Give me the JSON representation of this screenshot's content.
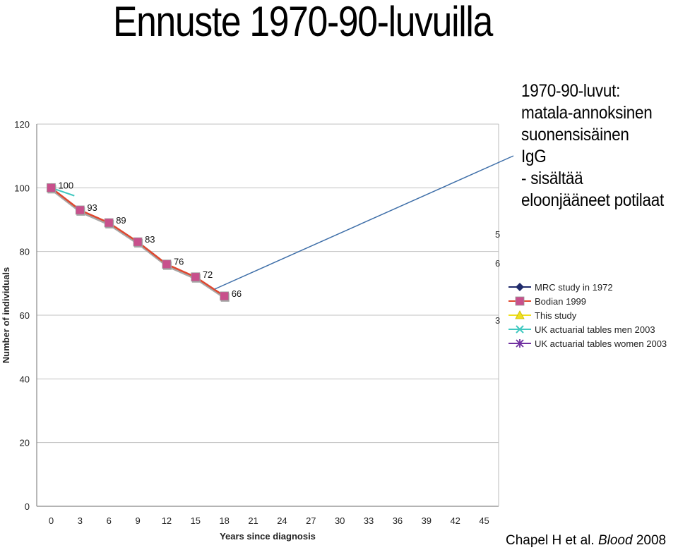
{
  "slide": {
    "title": "Ennuste 1970-90-luvuilla",
    "note_lines": [
      "1970-90-luvut:",
      "matala-annoksinen",
      "suonensisäinen",
      "IgG",
      "- sisältää",
      "eloonjääneet potilaat"
    ],
    "citation": {
      "authors": "Chapel H et al. ",
      "journal": "Blood",
      "year": " 2008"
    }
  },
  "colors": {
    "mrc": "#1f2a6b",
    "bodian": "#c8508c",
    "bodian_line": "#e0472f",
    "this_study": "#f0e020",
    "uk_men": "#40c8c0",
    "uk_women": "#7030a0",
    "annotation_line": "#3d6ea8",
    "gridline": "#c0c0c0"
  },
  "chart_data": {
    "type": "line",
    "xlabel": "Years since diagnosis",
    "ylabel": "Number of individuals",
    "ylim": [
      0,
      120
    ],
    "yticks": [
      0,
      20,
      40,
      60,
      80,
      100,
      120
    ],
    "xticks": [
      0,
      3,
      6,
      9,
      12,
      15,
      18,
      21,
      24,
      27,
      30,
      33,
      36,
      39,
      42,
      45
    ],
    "grid": true,
    "legend_position": "right",
    "series": [
      {
        "name": "MRC study in 1972",
        "marker": "diamond",
        "x": [
          0
        ],
        "values": [
          100
        ]
      },
      {
        "name": "Bodian 1999",
        "marker": "square",
        "x": [
          0,
          3,
          6,
          9,
          12,
          15,
          18
        ],
        "values": [
          100,
          93,
          89,
          83,
          76,
          72,
          66
        ]
      },
      {
        "name": "This study",
        "marker": "triangle",
        "x": [
          0
        ],
        "values": [
          100
        ]
      },
      {
        "name": "UK actuarial tables men 2003",
        "marker": "x",
        "x": [
          0
        ],
        "values": [
          100
        ]
      },
      {
        "name": "UK actuarial tables women 2003",
        "marker": "star",
        "x": [
          0
        ],
        "values": [
          100
        ]
      }
    ],
    "data_labels": [
      {
        "x": 0,
        "y": 100,
        "text": "100"
      },
      {
        "x": 3,
        "y": 93,
        "text": "93"
      },
      {
        "x": 6,
        "y": 89,
        "text": "89"
      },
      {
        "x": 9,
        "y": 83,
        "text": "83"
      },
      {
        "x": 12,
        "y": 76,
        "text": "76"
      },
      {
        "x": 15,
        "y": 72,
        "text": "72"
      },
      {
        "x": 18,
        "y": 66,
        "text": "66"
      }
    ],
    "edge_fragments": [
      "5",
      "6",
      "3"
    ]
  }
}
